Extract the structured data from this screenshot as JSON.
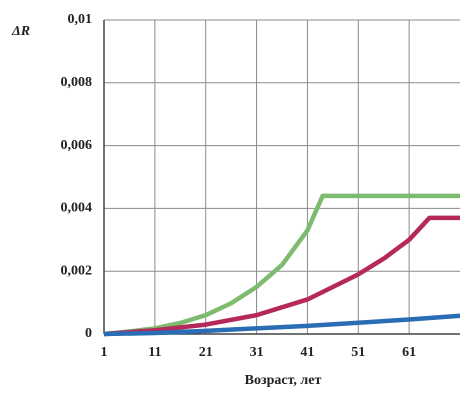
{
  "chart_data": {
    "type": "line",
    "y_label": "ΔR",
    "x_label": "Возраст, лет",
    "xlim": [
      1,
      71
    ],
    "xticks": [
      1,
      11,
      21,
      31,
      41,
      51,
      61
    ],
    "ylim": [
      0,
      0.01
    ],
    "yticks": [
      0,
      {
        "value": 0.002,
        "label": "0,002"
      },
      {
        "value": 0.004,
        "label": "0,004"
      },
      {
        "value": 0.006,
        "label": "0,006"
      },
      {
        "value": 0.008,
        "label": "0,008"
      },
      {
        "value": 0.01,
        "label": "0,01"
      }
    ],
    "grid": true,
    "series": [
      {
        "color": "#7dbb6e",
        "x": [
          1,
          6,
          11,
          16,
          21,
          26,
          31,
          36,
          41,
          44,
          71
        ],
        "values": [
          0,
          8e-05,
          0.00018,
          0.00035,
          0.0006,
          0.00098,
          0.0015,
          0.0022,
          0.0033,
          0.0044,
          0.0044
        ]
      },
      {
        "color": "#b5285a",
        "x": [
          1,
          11,
          21,
          31,
          41,
          51,
          56,
          61,
          65,
          71
        ],
        "values": [
          0,
          0.00012,
          0.0003,
          0.0006,
          0.0011,
          0.0019,
          0.0024,
          0.003,
          0.0037,
          0.0037
        ]
      },
      {
        "color": "#2a6db5",
        "x": [
          1,
          11,
          21,
          31,
          41,
          51,
          61,
          71
        ],
        "values": [
          0,
          3e-05,
          0.0001,
          0.00018,
          0.00026,
          0.00036,
          0.00046,
          0.00058
        ]
      }
    ]
  }
}
